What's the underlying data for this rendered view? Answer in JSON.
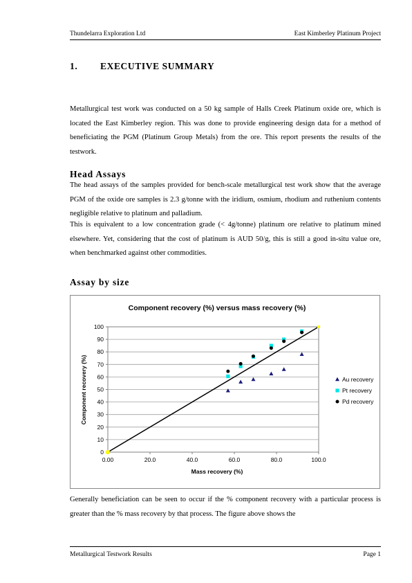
{
  "header": {
    "left": "Thundelarra Exploration Ltd",
    "right": "East Kimberley Platinum Project"
  },
  "section": {
    "number": "1.",
    "title": "EXECUTIVE SUMMARY"
  },
  "intro": "Metallurgical test work was conducted on a 50 kg sample of Halls Creek Platinum oxide ore, which is located the East Kimberley region. This was done to provide engineering design data for a method of beneficiating the PGM (Platinum Group Metals) from the ore. This report presents the results of the testwork.",
  "head_assays": {
    "heading": "Head Assays",
    "p1": "The head assays of the samples provided for bench-scale metallurgical test work show that the average PGM of the oxide ore samples is 2.3 g/tonne with the iridium, osmium, rhodium and ruthenium contents negligible relative to platinum and palladium.",
    "p2": "This is equivalent to a low concentration grade (< 4g/tonne) platinum ore relative to platinum mined elsewhere. Yet, considering that the cost of platinum is AUD 50/g, this is still a good in-situ value ore, when benchmarked against other commodities."
  },
  "assay_by_size": {
    "heading": "Assay by size"
  },
  "chart_data": {
    "type": "scatter",
    "title": "Component recovery (%) versus mass recovery (%)",
    "xlabel": "Mass recovery (%)",
    "ylabel": "Component recovery (%)",
    "xlim": [
      0,
      100
    ],
    "ylim": [
      0,
      100
    ],
    "x_ticks": [
      "0.00",
      "20.0",
      "40.0",
      "60.0",
      "80.0",
      "100.0"
    ],
    "y_ticks": [
      "0",
      "10",
      "20",
      "30",
      "40",
      "50",
      "60",
      "70",
      "80",
      "90",
      "100"
    ],
    "grid": "horizontal",
    "legend_position": "right",
    "series": [
      {
        "name": "Au recovery",
        "marker": "triangle",
        "color": "#1a1a7a",
        "points": [
          [
            0,
            0
          ],
          [
            57,
            49
          ],
          [
            63,
            56
          ],
          [
            69,
            58
          ],
          [
            77.5,
            62.5
          ],
          [
            83.5,
            66
          ],
          [
            92,
            78
          ]
        ]
      },
      {
        "name": "Pt recovery",
        "marker": "square",
        "color": "#00e5e5",
        "points": [
          [
            0,
            0
          ],
          [
            57,
            60.5
          ],
          [
            63,
            68.5
          ],
          [
            69,
            76
          ],
          [
            77.5,
            85
          ],
          [
            83.5,
            90
          ],
          [
            92,
            96.5
          ]
        ]
      },
      {
        "name": "Pd recovery",
        "marker": "circle",
        "color": "#000000",
        "points": [
          [
            0,
            0
          ],
          [
            57,
            64.5
          ],
          [
            63,
            70.5
          ],
          [
            69,
            76.5
          ],
          [
            77.5,
            83
          ],
          [
            83.5,
            88.5
          ],
          [
            92,
            95.5
          ]
        ]
      }
    ],
    "reference_line": {
      "points": [
        [
          0,
          0
        ],
        [
          100,
          100
        ]
      ],
      "color": "#000000"
    },
    "endpoint_marker_color": "#ffff00"
  },
  "closing": "Generally beneficiation can be seen to occur if the % component recovery with a particular process is greater than the % mass recovery by that process. The figure above shows the",
  "footer": {
    "left": "Metallurgical Testwork Results",
    "right": "Page 1"
  }
}
